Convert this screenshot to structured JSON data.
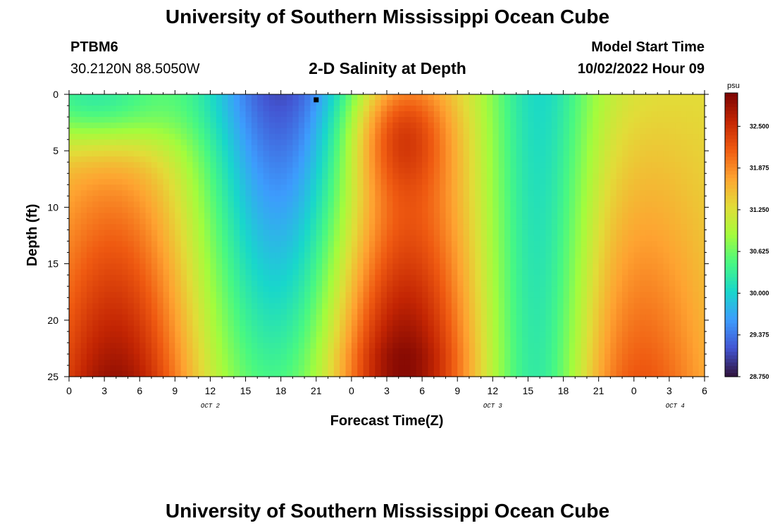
{
  "header": {
    "title": "University of Southern Mississippi Ocean Cube",
    "station_id": "PTBM6",
    "station_coords": "30.2120N  88.5050W",
    "model_start_label": "Model Start Time",
    "model_start_value": "10/02/2022 Hour 09",
    "footer_title": "University of Southern Mississippi Ocean Cube"
  },
  "chart_data": {
    "type": "heatmap",
    "title": "2-D Salinity at Depth",
    "xlabel": "Forecast Time(Z)",
    "ylabel": "Depth (ft)",
    "x_tick_labels": [
      "0",
      "3",
      "6",
      "9",
      "12",
      "15",
      "18",
      "21",
      "0",
      "3",
      "6",
      "9",
      "12",
      "15",
      "18",
      "21",
      "0",
      "3",
      "6"
    ],
    "x_range_hours": [
      0,
      54
    ],
    "date_labels": [
      "OCT 2",
      "OCT 3",
      "OCT 4"
    ],
    "y_ticks": [
      0,
      5,
      10,
      15,
      20,
      25
    ],
    "ylim": [
      0,
      25
    ],
    "y_inverted": true,
    "colorbar": {
      "unit": "psu",
      "min": 28.75,
      "max": 33.0,
      "tick_labels": [
        "32.500",
        "31.875",
        "31.250",
        "30.625",
        "30.000",
        "29.375",
        "28.750"
      ],
      "colormap": "turbo"
    },
    "marker": {
      "hour": 21,
      "depth": 0.3
    }
  }
}
